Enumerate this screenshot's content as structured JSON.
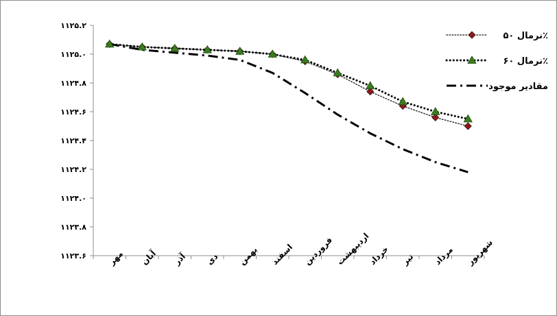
{
  "chart_data": {
    "type": "line",
    "title": "",
    "xlabel": "",
    "ylabel": "",
    "ylim": [
      1123.6,
      1125.2
    ],
    "y_ticks": [
      "۱۱۲۵.۲",
      "۱۱۲۵.۰",
      "۱۱۲۴.۸",
      "۱۱۲۴.۶",
      "۱۱۲۴.۴",
      "۱۱۲۴.۲",
      "۱۱۲۴.۰",
      "۱۱۲۳.۸",
      "۱۱۲۳.۶"
    ],
    "y_tick_values": [
      1125.2,
      1125.0,
      1124.8,
      1124.6,
      1124.4,
      1124.2,
      1124.0,
      1123.8,
      1123.6
    ],
    "categories": [
      "مهر",
      "آبان",
      "آذر",
      "دی",
      "بهمن",
      "اسفند",
      "فروردین",
      "اردیبهشت",
      "خرداد",
      "تیر",
      "مرداد",
      "شهریور"
    ],
    "grid": false,
    "legend_position": "top-right",
    "series": [
      {
        "name": "نرمال ۵۰٪",
        "color": "#8b1a1a",
        "marker": "diamond",
        "line_style": "dotted-thin",
        "values": [
          1125.07,
          1125.05,
          1125.04,
          1125.03,
          1125.02,
          1125.0,
          1124.95,
          1124.86,
          1124.74,
          1124.64,
          1124.56,
          1124.5
        ]
      },
      {
        "name": "نرمال ۶۰٪",
        "color": "#3a7d1e",
        "marker": "triangle",
        "line_style": "dotted-thick",
        "values": [
          1125.07,
          1125.05,
          1125.04,
          1125.03,
          1125.02,
          1125.0,
          1124.96,
          1124.87,
          1124.78,
          1124.67,
          1124.6,
          1124.55
        ]
      },
      {
        "name": "مقادیر موجود",
        "color": "#000000",
        "marker": "none",
        "line_style": "dash-dot",
        "values": [
          1125.07,
          1125.03,
          1125.01,
          1124.99,
          1124.96,
          1124.87,
          1124.73,
          1124.58,
          1124.45,
          1124.34,
          1124.25,
          1124.18
        ]
      }
    ]
  }
}
